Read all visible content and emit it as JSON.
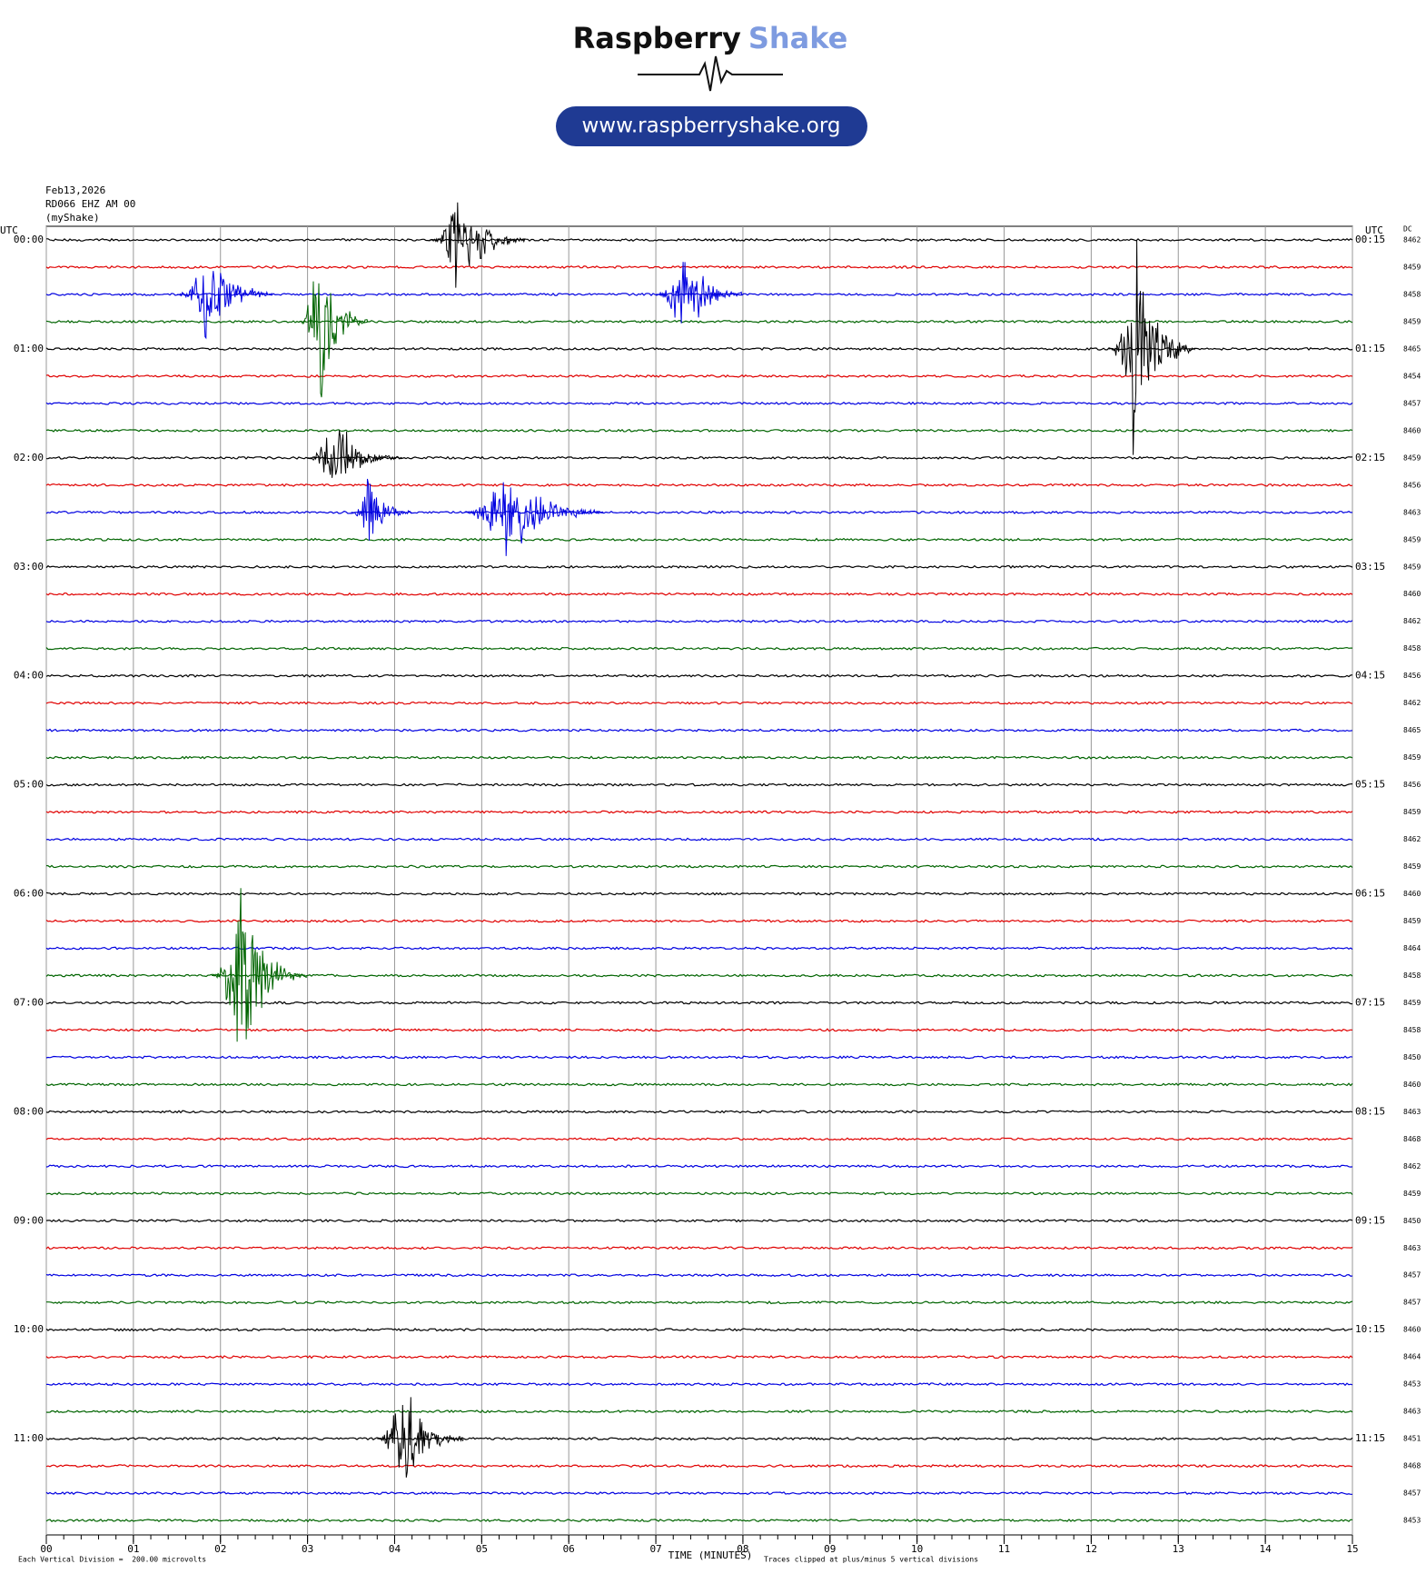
{
  "header": {
    "brand": "Raspberry",
    "brand_accent": "Shake",
    "url": "www.raspberryshake.org"
  },
  "chart_data": {
    "type": "helicorder",
    "title_lines": [
      "Feb13,2026",
      "RD066 EHZ AM 00",
      "(myShake)"
    ],
    "left_axis_label": "UTC",
    "right_axis_label": "UTC",
    "dc_label": "DC",
    "left_labels": [
      "00:00",
      "01:00",
      "02:00",
      "03:00",
      "04:00",
      "05:00",
      "06:00",
      "07:00",
      "08:00",
      "09:00",
      "10:00",
      "11:00"
    ],
    "right_labels": [
      "00:15",
      "01:15",
      "02:15",
      "03:15",
      "04:15",
      "05:15",
      "06:15",
      "07:15",
      "08:15",
      "09:15",
      "10:15",
      "11:15"
    ],
    "dc_values": [
      8462,
      8459,
      8458,
      8459,
      8465,
      8454,
      8457,
      8460,
      8459,
      8456,
      8463,
      8459,
      8459,
      8460,
      8462,
      8458,
      8456,
      8462,
      8465,
      8459,
      8456,
      8459,
      8462,
      8459,
      8460,
      8459,
      8464,
      8458,
      8459,
      8458,
      8450,
      8460,
      8463,
      8468,
      8462,
      8459,
      8450,
      8463,
      8457,
      8457,
      8460,
      8464,
      8453,
      8463,
      8451,
      8468,
      8457,
      8453
    ],
    "colors": [
      "#000000",
      "#e00000",
      "#0000e0",
      "#006400"
    ],
    "xlim": [
      0,
      15
    ],
    "xticks": [
      {
        "value": 0,
        "label": "00"
      },
      {
        "value": 1,
        "label": "01"
      },
      {
        "value": 2,
        "label": "02"
      },
      {
        "value": 3,
        "label": "03"
      },
      {
        "value": 4,
        "label": "04"
      },
      {
        "value": 5,
        "label": "05"
      },
      {
        "value": 6,
        "label": "06"
      },
      {
        "value": 7,
        "label": "07"
      },
      {
        "value": 8,
        "label": "08"
      },
      {
        "value": 9,
        "label": "09"
      },
      {
        "value": 10,
        "label": "10"
      },
      {
        "value": 11,
        "label": "11"
      },
      {
        "value": 12,
        "label": "12"
      },
      {
        "value": 13,
        "label": "13"
      },
      {
        "value": 14,
        "label": "14"
      },
      {
        "value": 15,
        "label": "15"
      }
    ],
    "x_label": "TIME (MINUTES)",
    "grid": true,
    "events": [
      {
        "row": 0,
        "start": 4.4,
        "end": 5.5,
        "amplitude": 2.5
      },
      {
        "row": 2,
        "start": 1.5,
        "end": 2.6,
        "amplitude": 2.7
      },
      {
        "row": 3,
        "start": 2.9,
        "end": 3.7,
        "amplitude": 3.5
      },
      {
        "row": 2,
        "start": 7.0,
        "end": 8.0,
        "amplitude": 2.5
      },
      {
        "row": 4,
        "start": 12.2,
        "end": 13.2,
        "amplitude": 5
      },
      {
        "row": 8,
        "start": 3.0,
        "end": 4.1,
        "amplitude": 2
      },
      {
        "row": 10,
        "start": 3.5,
        "end": 4.2,
        "amplitude": 1.8
      },
      {
        "row": 10,
        "start": 4.8,
        "end": 6.4,
        "amplitude": 2.5
      },
      {
        "row": 27,
        "start": 1.9,
        "end": 3.0,
        "amplitude": 4.5
      },
      {
        "row": 44,
        "start": 3.8,
        "end": 4.8,
        "amplitude": 2.7
      }
    ],
    "footer_left": "Each Vertical Division =  200.00 microvolts",
    "footer_right": "Traces clipped at plus/minus 5 vertical divisions"
  }
}
